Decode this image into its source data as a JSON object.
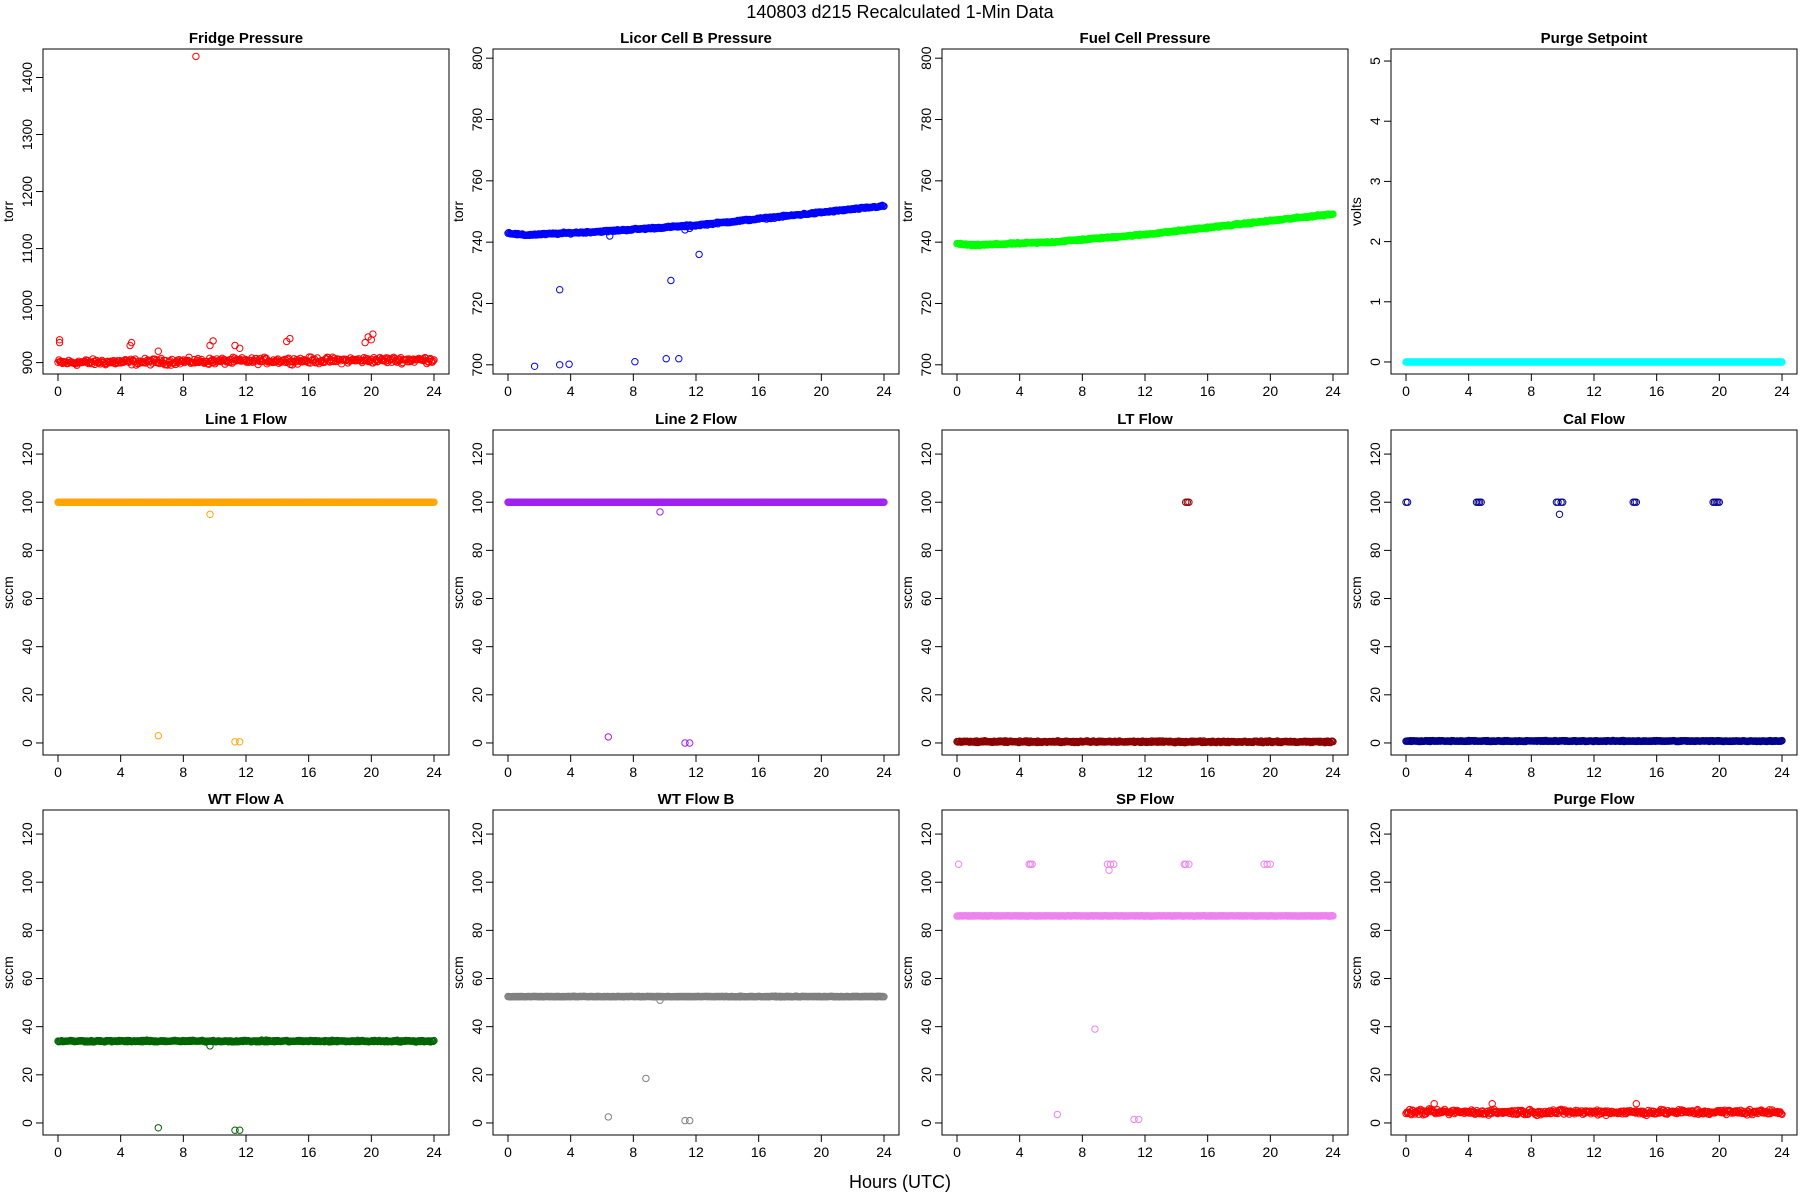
{
  "figure": {
    "title": "140803   d215   Recalculated 1-Min Data",
    "xlabel": "Hours (UTC)"
  },
  "chart_data": [
    {
      "type": "scatter",
      "title": "Fridge Pressure",
      "ylabel": "torr",
      "color": "#ff0000",
      "xlim": [
        0,
        24
      ],
      "ylim": [
        880,
        1450
      ],
      "xticks": [
        0,
        4,
        8,
        12,
        16,
        20,
        24
      ],
      "yticks": [
        900,
        1000,
        1100,
        1200,
        1300,
        1400
      ],
      "baseline": [
        [
          0,
          900
        ],
        [
          12,
          903
        ],
        [
          24,
          905
        ]
      ],
      "noise": 8,
      "points": [
        [
          0.1,
          935
        ],
        [
          0.1,
          940
        ],
        [
          4.6,
          930
        ],
        [
          4.7,
          935
        ],
        [
          6.4,
          920
        ],
        [
          8.8,
          1437
        ],
        [
          9.7,
          930
        ],
        [
          9.9,
          938
        ],
        [
          11.3,
          930
        ],
        [
          11.6,
          925
        ],
        [
          14.6,
          937
        ],
        [
          14.8,
          942
        ],
        [
          19.6,
          935
        ],
        [
          19.8,
          945
        ],
        [
          20.0,
          940
        ],
        [
          20.1,
          950
        ]
      ]
    },
    {
      "type": "scatter",
      "title": "Licor Cell B Pressure",
      "ylabel": "torr",
      "color": "#0000ff",
      "xlim": [
        0,
        24
      ],
      "ylim": [
        697,
        803
      ],
      "xticks": [
        0,
        4,
        8,
        12,
        16,
        20,
        24
      ],
      "yticks": [
        700,
        720,
        740,
        760,
        780,
        800
      ],
      "baseline": [
        [
          0,
          743
        ],
        [
          1,
          742.3
        ],
        [
          6,
          743.5
        ],
        [
          12,
          745.5
        ],
        [
          24,
          751.8
        ]
      ],
      "noise": 0.4,
      "points": [
        [
          1.7,
          699.5
        ],
        [
          3.3,
          700
        ],
        [
          3.9,
          700.2
        ],
        [
          3.3,
          724.5
        ],
        [
          6.5,
          742
        ],
        [
          8.1,
          701
        ],
        [
          10.1,
          702
        ],
        [
          10.9,
          702
        ],
        [
          10.4,
          727.5
        ],
        [
          11.3,
          744
        ],
        [
          11.6,
          744.5
        ],
        [
          12.2,
          736
        ]
      ]
    },
    {
      "type": "scatter",
      "title": "Fuel Cell Pressure",
      "ylabel": "torr",
      "color": "#00ff00",
      "xlim": [
        0,
        24
      ],
      "ylim": [
        697,
        803
      ],
      "xticks": [
        0,
        4,
        8,
        12,
        16,
        20,
        24
      ],
      "yticks": [
        700,
        720,
        740,
        760,
        780,
        800
      ],
      "baseline": [
        [
          0,
          739.5
        ],
        [
          1,
          739
        ],
        [
          6,
          740
        ],
        [
          12,
          742.5
        ],
        [
          24,
          749.2
        ]
      ],
      "noise": 0.35,
      "points": []
    },
    {
      "type": "scatter",
      "title": "Purge Setpoint",
      "ylabel": "volts",
      "color": "#00ffff",
      "xlim": [
        0,
        24
      ],
      "ylim": [
        -0.2,
        5.2
      ],
      "xticks": [
        0,
        4,
        8,
        12,
        16,
        20,
        24
      ],
      "yticks": [
        0,
        1,
        2,
        3,
        4,
        5
      ],
      "baseline": [
        [
          0,
          0
        ],
        [
          24,
          0
        ]
      ],
      "noise": 0,
      "points": []
    },
    {
      "type": "scatter",
      "title": "Line 1 Flow",
      "ylabel": "sccm",
      "color": "#ffa500",
      "xlim": [
        0,
        24
      ],
      "ylim": [
        -5,
        130
      ],
      "xticks": [
        0,
        4,
        8,
        12,
        16,
        20,
        24
      ],
      "yticks": [
        0,
        20,
        40,
        60,
        80,
        100,
        120
      ],
      "baseline": [
        [
          0,
          100
        ],
        [
          24,
          100
        ]
      ],
      "noise": 0,
      "points": [
        [
          6.4,
          3
        ],
        [
          9.7,
          95
        ],
        [
          11.3,
          0.5
        ],
        [
          11.6,
          0.5
        ]
      ]
    },
    {
      "type": "scatter",
      "title": "Line 2 Flow",
      "ylabel": "sccm",
      "color": "#a020f0",
      "xlim": [
        0,
        24
      ],
      "ylim": [
        -5,
        130
      ],
      "xticks": [
        0,
        4,
        8,
        12,
        16,
        20,
        24
      ],
      "yticks": [
        0,
        20,
        40,
        60,
        80,
        100,
        120
      ],
      "baseline": [
        [
          0,
          100
        ],
        [
          24,
          100
        ]
      ],
      "noise": 0,
      "points": [
        [
          6.4,
          2.5
        ],
        [
          9.7,
          96
        ],
        [
          11.3,
          0
        ],
        [
          11.6,
          0
        ]
      ]
    },
    {
      "type": "scatter",
      "title": "LT Flow",
      "ylabel": "sccm",
      "color": "#8b0000",
      "xlim": [
        0,
        24
      ],
      "ylim": [
        -5,
        130
      ],
      "xticks": [
        0,
        4,
        8,
        12,
        16,
        20,
        24
      ],
      "yticks": [
        0,
        20,
        40,
        60,
        80,
        100,
        120
      ],
      "baseline": [
        [
          0,
          0.5
        ],
        [
          24,
          0.5
        ]
      ],
      "noise": 0.5,
      "points": [
        [
          14.6,
          100
        ],
        [
          14.7,
          100
        ],
        [
          14.8,
          100
        ]
      ]
    },
    {
      "type": "scatter",
      "title": "Cal Flow",
      "ylabel": "sccm",
      "color": "#00008b",
      "xlim": [
        0,
        24
      ],
      "ylim": [
        -5,
        130
      ],
      "xticks": [
        0,
        4,
        8,
        12,
        16,
        20,
        24
      ],
      "yticks": [
        0,
        20,
        40,
        60,
        80,
        100,
        120
      ],
      "baseline": [
        [
          0,
          0.8
        ],
        [
          24,
          0.8
        ]
      ],
      "noise": 0.3,
      "points": [
        [
          0.0,
          100
        ],
        [
          0.1,
          100
        ],
        [
          4.5,
          100
        ],
        [
          4.6,
          100
        ],
        [
          4.7,
          100
        ],
        [
          4.8,
          100
        ],
        [
          9.6,
          100
        ],
        [
          9.7,
          100
        ],
        [
          9.9,
          100
        ],
        [
          10.0,
          100
        ],
        [
          9.8,
          95
        ],
        [
          14.5,
          100
        ],
        [
          14.6,
          100
        ],
        [
          14.7,
          100
        ],
        [
          19.6,
          100
        ],
        [
          19.7,
          100
        ],
        [
          19.8,
          100
        ],
        [
          19.9,
          100
        ],
        [
          20.0,
          100
        ]
      ]
    },
    {
      "type": "scatter",
      "title": "WT Flow A",
      "ylabel": "sccm",
      "color": "#006400",
      "xlim": [
        0,
        24
      ],
      "ylim": [
        -5,
        130
      ],
      "xticks": [
        0,
        4,
        8,
        12,
        16,
        20,
        24
      ],
      "yticks": [
        0,
        20,
        40,
        60,
        80,
        100,
        120
      ],
      "baseline": [
        [
          0,
          34
        ],
        [
          24,
          34
        ]
      ],
      "noise": 0.5,
      "points": [
        [
          6.4,
          -2
        ],
        [
          9.7,
          32
        ],
        [
          11.3,
          -3
        ],
        [
          11.6,
          -3
        ]
      ]
    },
    {
      "type": "scatter",
      "title": "WT Flow B",
      "ylabel": "sccm",
      "color": "#808080",
      "xlim": [
        0,
        24
      ],
      "ylim": [
        -5,
        130
      ],
      "xticks": [
        0,
        4,
        8,
        12,
        16,
        20,
        24
      ],
      "yticks": [
        0,
        20,
        40,
        60,
        80,
        100,
        120
      ],
      "baseline": [
        [
          0,
          52.5
        ],
        [
          24,
          52.5
        ]
      ],
      "noise": 0.2,
      "points": [
        [
          6.4,
          2.5
        ],
        [
          8.8,
          18.5
        ],
        [
          9.7,
          51
        ],
        [
          11.3,
          1
        ],
        [
          11.6,
          1
        ]
      ]
    },
    {
      "type": "scatter",
      "title": "SP Flow",
      "ylabel": "sccm",
      "color": "#ee82ee",
      "xlim": [
        0,
        24
      ],
      "ylim": [
        -5,
        130
      ],
      "xticks": [
        0,
        4,
        8,
        12,
        16,
        20,
        24
      ],
      "yticks": [
        0,
        20,
        40,
        60,
        80,
        100,
        120
      ],
      "baseline": [
        [
          0,
          86
        ],
        [
          24,
          86
        ]
      ],
      "noise": 0.1,
      "points": [
        [
          0.1,
          107.5
        ],
        [
          4.6,
          107.5
        ],
        [
          4.7,
          107.5
        ],
        [
          4.8,
          107.5
        ],
        [
          9.6,
          107.5
        ],
        [
          9.8,
          107.5
        ],
        [
          10.0,
          107.5
        ],
        [
          9.7,
          105
        ],
        [
          14.5,
          107.5
        ],
        [
          14.6,
          107.5
        ],
        [
          14.8,
          107.5
        ],
        [
          19.6,
          107.5
        ],
        [
          19.8,
          107.5
        ],
        [
          20.0,
          107.5
        ],
        [
          8.8,
          39
        ],
        [
          6.4,
          3.5
        ],
        [
          11.3,
          1.5
        ],
        [
          11.6,
          1.5
        ]
      ]
    },
    {
      "type": "scatter",
      "title": "Purge Flow",
      "ylabel": "sccm",
      "color": "#ff0000",
      "xlim": [
        0,
        24
      ],
      "ylim": [
        -5,
        130
      ],
      "xticks": [
        0,
        4,
        8,
        12,
        16,
        20,
        24
      ],
      "yticks": [
        0,
        20,
        40,
        60,
        80,
        100,
        120
      ],
      "baseline": [
        [
          0,
          4.5
        ],
        [
          24,
          4.5
        ]
      ],
      "noise": 1.6,
      "points": [
        [
          1.8,
          8
        ],
        [
          5.5,
          8
        ],
        [
          14.7,
          8
        ]
      ]
    }
  ]
}
